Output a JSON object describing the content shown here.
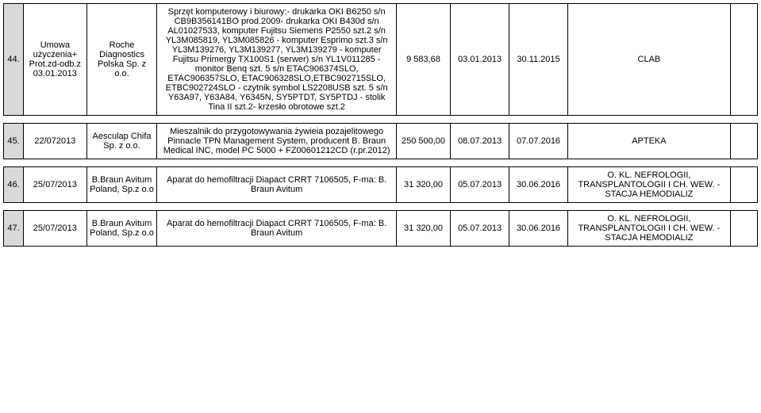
{
  "columns": {
    "idx_bg": "#d9d9d9",
    "border_color": "#000000"
  },
  "rows": [
    {
      "idx": "44.",
      "a": "Umowa użyczenia+ Prot.zd-odb.z 03.01.2013",
      "b": "Roche Diagnostics Polska Sp. z o.o.",
      "desc": "Sprzęt komputerowy i biurowy:- drukarka OKI B6250 s/n CB9B356141BO prod.2009- drukarka OKI B430d s/n AL01027533, komputer Fujitsu Siemens P2550 szt.2 s/n YL3M085819, YL3M085826 - komputer Esprimo szt.3 s/n YL3M139276, YL3M139277, YL3M139279 - komputer Fujitsu Primergy TX100S1 (serwer) s/n YL1V011285 - monitor Benq szt. 5 s/n ETAC906374SLO, ETAC906357SLO, ETAC906328SLO,ETBC902715SLO, ETBC902724SLO - czytnik symbol LS2208USB szt. 5 s/n Y63A97, Y63A84, Y6345N, SY5PTDT, SY5PTDJ - stolik Tina II szt.2- krzesło obrotowe szt.2",
      "amt": "9 583,68",
      "d1": "03.01.2013",
      "d2": "30.11.2015",
      "note": "CLAB",
      "last": ""
    },
    {
      "idx": "45.",
      "a": "22/072013",
      "b": "Aesculap Chifa Sp. z o.o.",
      "desc": "Mieszalnik do przygotowywania żywieia pozajelitowego Pinnacle TPN Management System, producent B. Braun Medical INC, model PC 5000 + FZ00601212CD (r.pr.2012)",
      "amt": "250 500,00",
      "d1": "08.07.2013",
      "d2": "07.07.2016",
      "note": "APTEKA",
      "last": ""
    },
    {
      "idx": "46.",
      "a": "25/07/2013",
      "b": "B.Braun Avitum Poland, Sp.z o.o",
      "desc": "Aparat do hemofiltracji Diapact CRRT 7106505, F-ma: B. Braun Avitum",
      "amt": "31 320,00",
      "d1": "05.07.2013",
      "d2": "30.06.2016",
      "note": "O. KL. NEFROLOGII, TRANSPLANTOLOGII I CH. WEW. - STACJA HEMODIALIZ",
      "last": ""
    },
    {
      "idx": "47.",
      "a": "25/07/2013",
      "b": "B.Braun Avitum Poland, Sp.z o.o",
      "desc": "Aparat do hemofiltracji Diapact CRRT 7106505, F-ma: B. Braun Avitum",
      "amt": "31 320,00",
      "d1": "05.07.2013",
      "d2": "30.06.2016",
      "note": "O. KL. NEFROLOGII, TRANSPLANTOLOGII I CH. WEW. - STACJA HEMODIALIZ",
      "last": ""
    }
  ]
}
